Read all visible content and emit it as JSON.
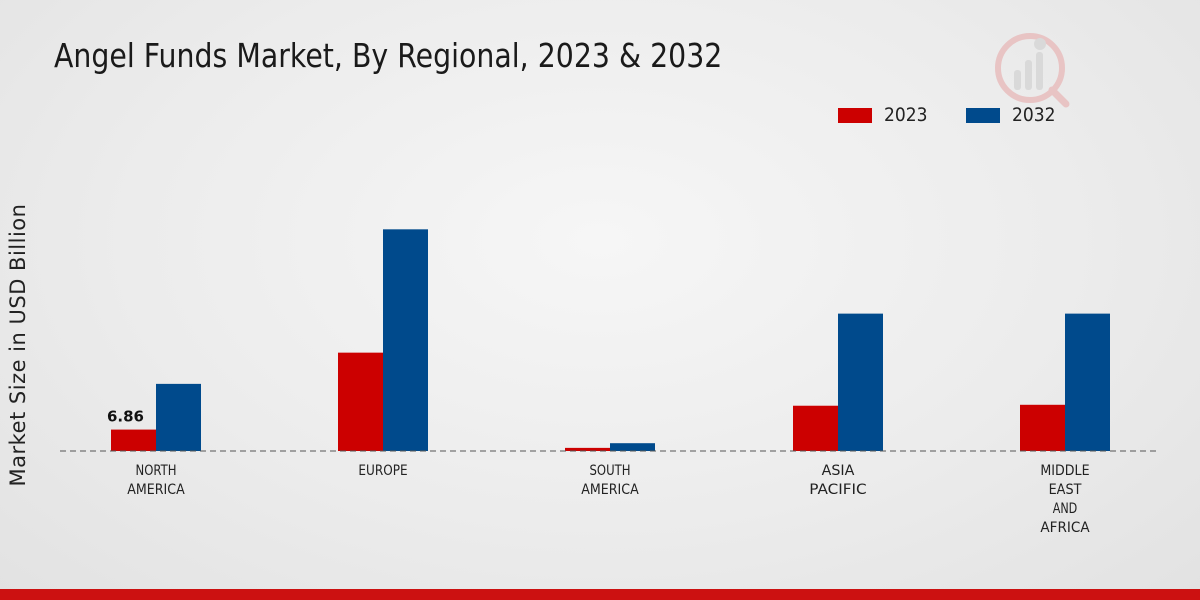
{
  "chart_data": {
    "type": "bar",
    "title": "Angel Funds Market, By Regional, 2023 & 2032",
    "ylabel": "Market Size in USD Billion",
    "xlabel": "",
    "categories": [
      [
        "NORTH",
        "AMERICA"
      ],
      [
        "EUROPE"
      ],
      [
        "SOUTH",
        "AMERICA"
      ],
      [
        "ASIA",
        "PACIFIC"
      ],
      [
        "MIDDLE",
        "EAST",
        "AND",
        "AFRICA"
      ]
    ],
    "series": [
      {
        "name": "2023",
        "color": "#cc0000",
        "values": [
          6.86,
          31.5,
          1.0,
          14.5,
          14.8
        ]
      },
      {
        "name": "2032",
        "color": "#004a8c",
        "values": [
          21.5,
          71.0,
          2.5,
          44.0,
          44.0
        ]
      }
    ],
    "data_labels": [
      {
        "series": 0,
        "index": 0,
        "text": "6.86"
      }
    ],
    "ylim": [
      0,
      90
    ],
    "legend_position": "top-right",
    "grid": false,
    "baseline": "dashed"
  }
}
